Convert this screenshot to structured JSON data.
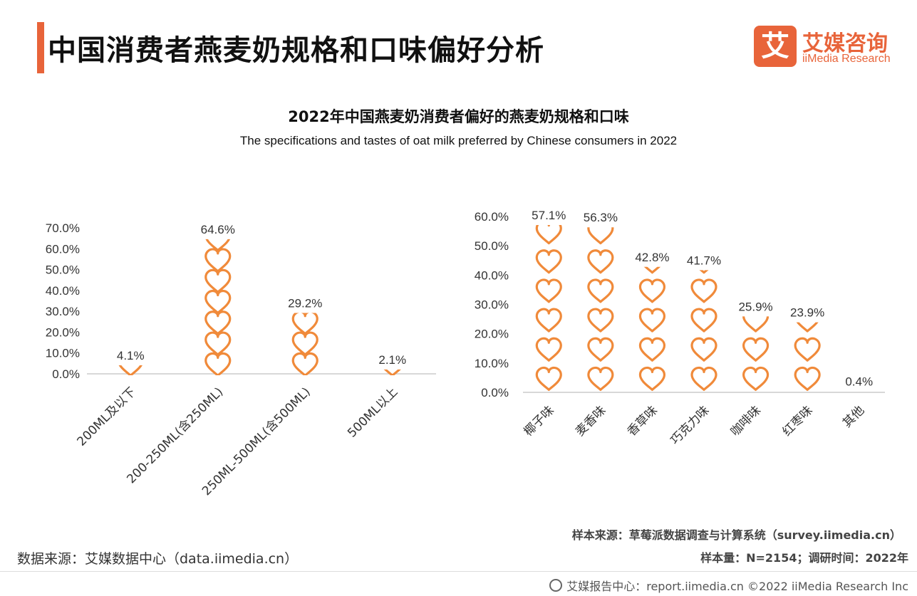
{
  "header": {
    "title": "中国消费者燕麦奶规格和口味偏好分析",
    "logo_mark": "艾",
    "logo_cn": "艾媒咨询",
    "logo_en": "iiMedia Research"
  },
  "chart_header": {
    "title": "2022年中国燕麦奶消费者偏好的燕麦奶规格和口味",
    "subtitle": "The specifications and tastes of oat milk preferred by Chinese consumers in 2022"
  },
  "colors": {
    "accent": "#e8643a",
    "heart": "#f08a3a",
    "axis": "#cccccc"
  },
  "icons": {
    "data_marker": "heart-icon"
  },
  "chart_data": [
    {
      "type": "bar",
      "marker": "heart",
      "categories": [
        "200ML及以下",
        "200-250ML(含250ML)",
        "250ML-500ML(含500ML)",
        "500ML以上"
      ],
      "values": [
        4.1,
        64.6,
        29.2,
        2.1
      ],
      "value_labels": [
        "4.1%",
        "64.6%",
        "29.2%",
        "2.1%"
      ],
      "ylim": [
        0,
        70
      ],
      "yticks": [
        "0.0%",
        "10.0%",
        "20.0%",
        "30.0%",
        "40.0%",
        "50.0%",
        "60.0%",
        "70.0%"
      ],
      "category_label_rotation": "-45deg"
    },
    {
      "type": "bar",
      "marker": "heart",
      "categories": [
        "椰子味",
        "麦香味",
        "香草味",
        "巧克力味",
        "咖啡味",
        "红枣味",
        "其他"
      ],
      "values": [
        57.1,
        56.3,
        42.8,
        41.7,
        25.9,
        23.9,
        0.4
      ],
      "value_labels": [
        "57.1%",
        "56.3%",
        "42.8%",
        "41.7%",
        "25.9%",
        "23.9%",
        "0.4%"
      ],
      "ylim": [
        0,
        60
      ],
      "yticks": [
        "0.0%",
        "10.0%",
        "20.0%",
        "30.0%",
        "40.0%",
        "50.0%",
        "60.0%"
      ],
      "category_label_rotation": "-45deg"
    }
  ],
  "footer": {
    "data_source": "数据来源：艾媒数据中心（data.iimedia.cn）",
    "sample_source": "样本来源：草莓派数据调查与计算系统（survey.iimedia.cn）",
    "sample_size": "样本量：N=2154；调研时间：2022年",
    "copyright": "艾媒报告中心：report.iimedia.cn   ©2022  iiMedia Research  Inc"
  }
}
